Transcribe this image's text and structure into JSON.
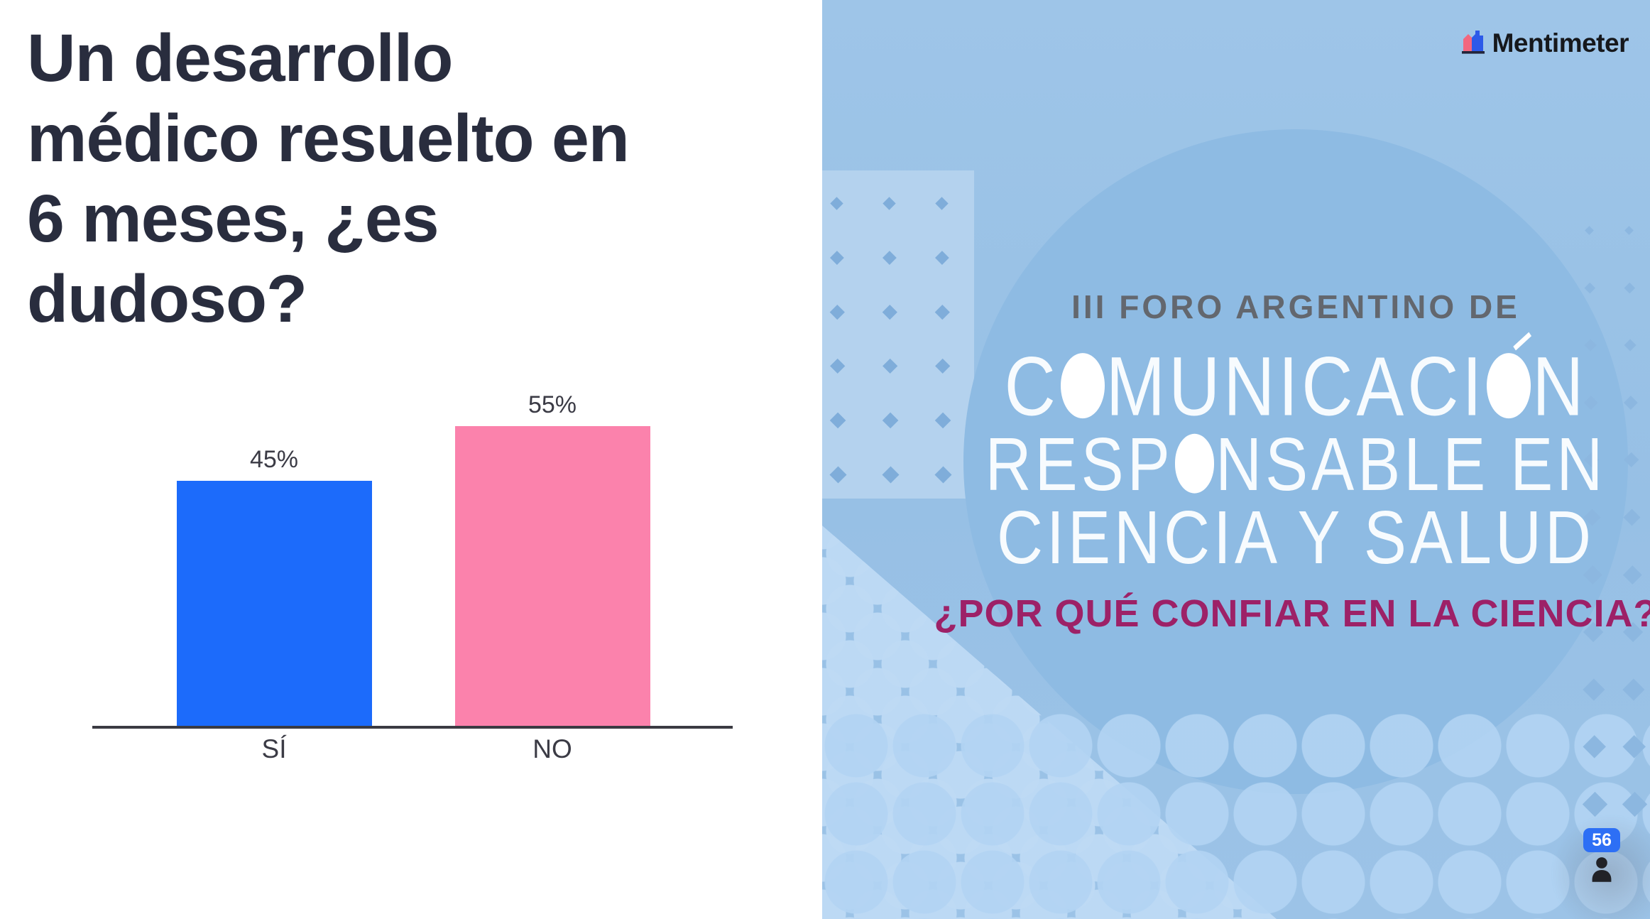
{
  "question": {
    "text": "Un desarrollo médico resuelto en 6 meses, ¿es dudoso?",
    "lines": [
      "Un desarrollo",
      "médico resuelto en",
      "6 meses, ¿es",
      "dudoso?"
    ]
  },
  "chart_data": {
    "type": "bar",
    "categories": [
      "SÍ",
      "NO"
    ],
    "values": [
      45,
      55
    ],
    "value_labels": [
      "45%",
      "55%"
    ],
    "series_unit": "percent",
    "ylim": [
      0,
      62
    ],
    "grid": false,
    "legend": "none",
    "bar_colors": [
      "#1C6BFB",
      "#FB82AC"
    ],
    "axis_color": "#3A3A42",
    "label_color": "#3B3B45"
  },
  "poster": {
    "kicker": "III FORO ARGENTINO DE",
    "lines": [
      {
        "text": "COMUNICACIÓN",
        "segments": [
          {
            "t": "C"
          },
          {
            "ball": true
          },
          {
            "t": "MUNICACI"
          },
          {
            "ball": true,
            "accent": true
          },
          {
            "t": "N"
          }
        ]
      },
      {
        "text": "RESPONSABLE EN",
        "segments": [
          {
            "t": "RESP"
          },
          {
            "ball": true
          },
          {
            "t": "NSABLE EN"
          }
        ]
      },
      {
        "text": "CIENCIA Y SALUD",
        "segments": [
          {
            "t": "CIENCIA Y SALUD"
          }
        ]
      }
    ],
    "tagline": "¿POR QUÉ CONFIAR EN LA CIENCIA?",
    "colors": {
      "panel_base": "#9AC2E6",
      "circle": "#8EBBE3",
      "light_block": "#B4D2EE",
      "kicker": "#63676E",
      "headline": "#F7FBFE",
      "tagline": "#9D2167"
    }
  },
  "branding": {
    "logo_text": "Mentimeter",
    "logo_colors": {
      "pink": "#F2677F",
      "blue": "#2C59E9",
      "dark": "#23253A",
      "text": "#16181C"
    }
  },
  "participants": {
    "count": "56",
    "badge_color": "#2D6FF5"
  }
}
